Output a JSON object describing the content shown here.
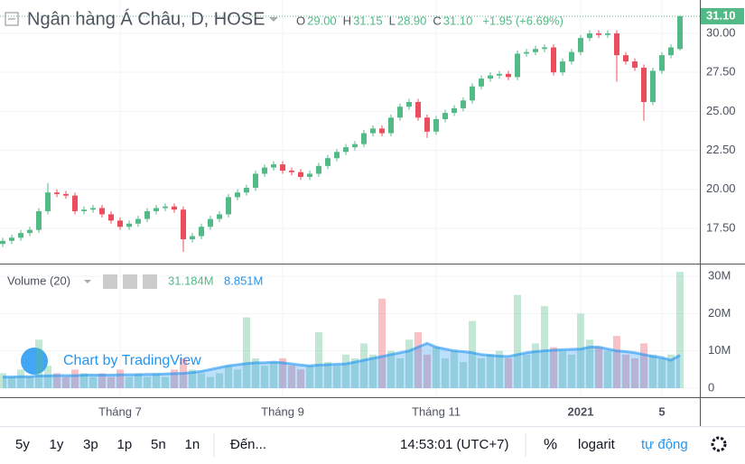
{
  "chart_data": {
    "type": "candlestick",
    "title": "Ngân hàng Á Châu, D, HOSE",
    "ohlc_header": [
      {
        "key": "O",
        "label": "29.00"
      },
      {
        "key": "H",
        "label": "31.15"
      },
      {
        "key": "L",
        "label": "28.90"
      },
      {
        "key": "C",
        "label": "31.10"
      }
    ],
    "change_label": "+1.95 (+6.69%)",
    "last_label": "31.10",
    "up_color": "#53b987",
    "down_color": "#eb4d5c",
    "categories": [
      null,
      null,
      null,
      null,
      null,
      null,
      null,
      null,
      null,
      null,
      null,
      null,
      null,
      "Tháng 7",
      null,
      null,
      null,
      null,
      null,
      null,
      null,
      null,
      null,
      null,
      null,
      null,
      null,
      null,
      null,
      null,
      null,
      "Tháng 9",
      null,
      null,
      null,
      null,
      null,
      null,
      null,
      null,
      null,
      null,
      null,
      null,
      null,
      null,
      null,
      null,
      "Tháng 11",
      null,
      null,
      null,
      null,
      null,
      null,
      null,
      null,
      null,
      null,
      null,
      null,
      null,
      null,
      null,
      "2021",
      null,
      null,
      null,
      null,
      null,
      null,
      null,
      null,
      "5",
      null,
      null
    ],
    "open": [
      16.5,
      16.7,
      16.9,
      17.2,
      17.4,
      18.6,
      19.8,
      19.7,
      19.6,
      18.6,
      18.7,
      18.8,
      18.4,
      18.0,
      17.6,
      17.8,
      18.1,
      18.6,
      18.8,
      18.9,
      18.7,
      16.8,
      17.0,
      17.6,
      18.1,
      18.4,
      19.5,
      19.8,
      20.1,
      21.0,
      21.4,
      21.6,
      21.2,
      21.1,
      20.8,
      21.0,
      21.5,
      22.0,
      22.4,
      22.7,
      22.9,
      23.6,
      23.9,
      23.6,
      24.6,
      25.3,
      25.6,
      24.6,
      23.7,
      24.5,
      24.9,
      25.2,
      25.7,
      26.6,
      27.1,
      27.3,
      27.4,
      27.2,
      28.7,
      28.8,
      29.0,
      29.1,
      27.5,
      28.2,
      28.8,
      29.7,
      30.0,
      29.9,
      30.0,
      28.6,
      28.2,
      27.8,
      25.6,
      27.6,
      28.6,
      29.0
    ],
    "high": [
      16.9,
      17.1,
      17.4,
      17.6,
      18.8,
      20.4,
      20.0,
      19.9,
      19.8,
      18.9,
      19.0,
      19.0,
      18.6,
      18.2,
      18.0,
      18.3,
      18.8,
      19.0,
      19.1,
      19.1,
      18.9,
      17.2,
      17.8,
      18.3,
      18.6,
      19.7,
      20.0,
      20.3,
      21.2,
      21.6,
      21.8,
      21.8,
      21.4,
      21.3,
      21.2,
      21.7,
      22.2,
      22.6,
      22.9,
      23.1,
      23.8,
      24.1,
      24.1,
      24.8,
      25.5,
      25.8,
      25.8,
      24.8,
      24.7,
      25.1,
      25.4,
      25.9,
      26.8,
      27.3,
      27.5,
      27.6,
      27.6,
      28.9,
      29.0,
      29.2,
      29.3,
      29.3,
      28.4,
      29.0,
      29.9,
      30.2,
      30.2,
      30.2,
      30.2,
      28.8,
      28.4,
      28.0,
      27.8,
      28.8,
      29.3,
      31.15
    ],
    "low": [
      16.3,
      16.5,
      16.7,
      17.0,
      17.2,
      18.4,
      19.5,
      19.4,
      18.4,
      18.4,
      18.5,
      18.2,
      17.8,
      17.4,
      17.4,
      17.6,
      17.9,
      18.4,
      18.6,
      18.5,
      16.0,
      16.6,
      16.8,
      17.4,
      17.9,
      18.2,
      19.3,
      19.6,
      19.9,
      20.8,
      21.2,
      21.0,
      20.9,
      20.6,
      20.6,
      20.8,
      21.3,
      21.8,
      22.2,
      22.5,
      22.7,
      23.4,
      23.4,
      23.4,
      24.4,
      25.1,
      24.4,
      23.3,
      23.5,
      24.3,
      24.7,
      25.0,
      25.5,
      26.4,
      26.9,
      27.1,
      27.0,
      27.0,
      28.5,
      28.6,
      28.8,
      27.3,
      27.3,
      28.0,
      28.6,
      29.5,
      29.7,
      29.7,
      26.9,
      28.0,
      27.6,
      24.4,
      25.4,
      27.4,
      28.4,
      28.9
    ],
    "close": [
      16.7,
      16.9,
      17.2,
      17.4,
      18.6,
      19.8,
      19.7,
      19.6,
      18.6,
      18.7,
      18.8,
      18.4,
      18.0,
      17.6,
      17.8,
      18.1,
      18.6,
      18.8,
      18.9,
      18.7,
      16.8,
      17.0,
      17.6,
      18.1,
      18.4,
      19.5,
      19.8,
      20.1,
      21.0,
      21.4,
      21.6,
      21.2,
      21.1,
      20.8,
      21.0,
      21.5,
      22.0,
      22.4,
      22.7,
      22.9,
      23.6,
      23.9,
      23.6,
      24.6,
      25.3,
      25.6,
      24.6,
      23.7,
      24.5,
      24.9,
      25.2,
      25.7,
      26.6,
      27.1,
      27.3,
      27.4,
      27.2,
      28.7,
      28.8,
      29.0,
      29.1,
      27.5,
      28.2,
      28.8,
      29.7,
      30.0,
      29.9,
      30.0,
      28.6,
      28.2,
      27.8,
      25.6,
      27.6,
      28.6,
      29.1,
      31.1
    ],
    "ylim": [
      15.24,
      32.14
    ],
    "yticks": [
      {
        "value": 17.5,
        "label": "17.50"
      },
      {
        "value": 20,
        "label": "20.00"
      },
      {
        "value": 22.5,
        "label": "22.50"
      },
      {
        "value": 25,
        "label": "25.00"
      },
      {
        "value": 27.5,
        "label": "27.50"
      },
      {
        "value": 30,
        "label": "30.00"
      }
    ],
    "volume": {
      "name": "Volume (20)",
      "value_label": "31.184M",
      "ma_label": "8.851M",
      "ma_color": "#2196f3",
      "values": [
        4,
        3,
        5,
        3,
        13,
        6,
        4,
        3,
        5,
        4,
        3,
        4,
        3,
        5,
        3,
        4,
        3,
        4,
        3,
        5,
        8,
        5,
        4,
        3,
        4,
        6,
        5,
        19,
        8,
        6,
        7,
        8,
        6,
        5,
        6,
        15,
        7,
        6,
        9,
        8,
        12,
        9,
        24,
        10,
        8,
        13,
        15,
        9,
        11,
        8,
        10,
        7,
        18,
        8,
        9,
        10,
        8,
        25,
        9,
        12,
        22,
        11,
        10,
        9,
        20,
        13,
        11,
        10,
        14,
        9,
        8,
        12,
        9,
        8,
        9,
        31.184
      ],
      "ma_values": [
        3,
        3,
        3.1,
        3.1,
        3.3,
        3.3,
        3.4,
        3.4,
        3.4,
        3.5,
        3.5,
        3.5,
        3.5,
        3.6,
        3.6,
        3.6,
        3.7,
        3.7,
        3.8,
        3.9,
        4,
        4.2,
        4.5,
        5,
        5.5,
        6,
        6.3,
        6.6,
        6.8,
        6.8,
        7,
        6.8,
        6.5,
        6.2,
        6,
        6.2,
        6.3,
        6.4,
        6.5,
        7,
        7.5,
        8,
        8.5,
        9,
        9.5,
        10,
        11,
        12,
        11,
        10.5,
        10,
        9.8,
        9.5,
        9,
        8.8,
        8.6,
        8.5,
        9,
        9.5,
        9.8,
        10,
        10.2,
        10.3,
        10.4,
        10.5,
        11,
        11,
        10.5,
        10,
        9.8,
        9.5,
        9,
        8.5,
        8.2,
        7.5,
        8.851
      ],
      "ylim": [
        -2.42,
        33.15
      ],
      "yticks": [
        0,
        {
          "value": 10,
          "label": "10M"
        },
        {
          "value": 20,
          "label": "20M"
        },
        {
          "value": 30,
          "label": "30M"
        }
      ]
    }
  },
  "watermark": "Chart by TradingView",
  "toolbar": {
    "ranges": [
      "5y",
      "1y",
      "3p",
      "1p",
      "5n",
      "1n"
    ],
    "goto": "Đến...",
    "time": "14:53:01 (UTC+7)",
    "percent": "%",
    "log": "logarit",
    "auto": "tự động"
  }
}
